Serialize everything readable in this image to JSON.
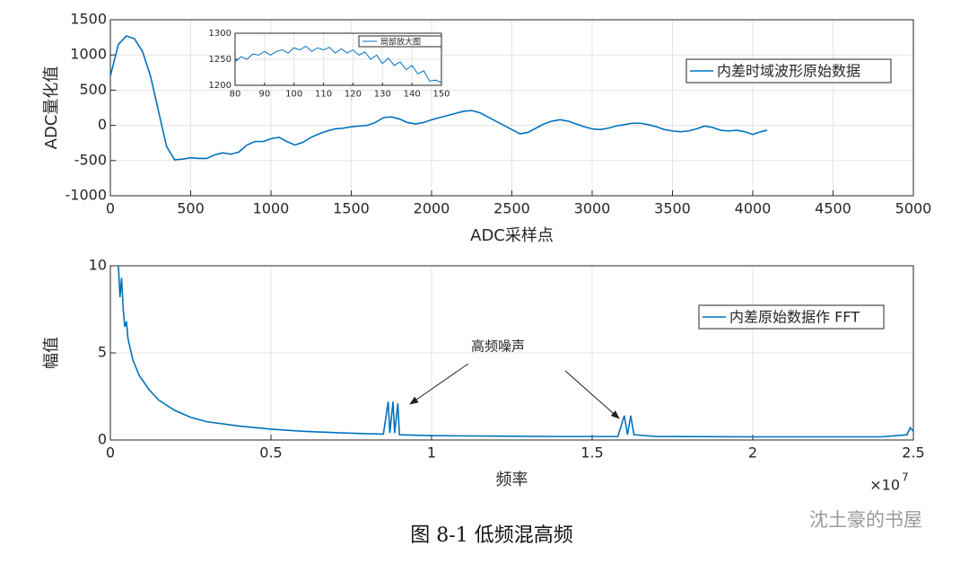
{
  "chart_data": [
    {
      "type": "line",
      "xlabel": "ADC采样点",
      "ylabel": "ADC量化值",
      "x": [
        0,
        50,
        100,
        150,
        200,
        250,
        300,
        350,
        400,
        450,
        500,
        550,
        600,
        650,
        700,
        750,
        800,
        850,
        900,
        950,
        1000,
        1050,
        1100,
        1150,
        1200,
        1250,
        1300,
        1350,
        1400,
        1450,
        1500,
        1550,
        1600,
        1650,
        1700,
        1750,
        1800,
        1850,
        1900,
        1950,
        2000,
        2050,
        2100,
        2150,
        2200,
        2250,
        2300,
        2350,
        2400,
        2450,
        2500,
        2550,
        2600,
        2650,
        2700,
        2750,
        2800,
        2850,
        2900,
        2950,
        3000,
        3050,
        3100,
        3150,
        3200,
        3250,
        3300,
        3350,
        3400,
        3450,
        3500,
        3550,
        3600,
        3650,
        3700,
        3750,
        3800,
        3850,
        3900,
        3950,
        4000,
        4050,
        4090
      ],
      "series": [
        {
          "name": "内差时域波形原始数据",
          "color": "#0072bd",
          "values": [
            700,
            1150,
            1270,
            1230,
            1050,
            700,
            200,
            -300,
            -490,
            -480,
            -460,
            -470,
            -470,
            -420,
            -390,
            -410,
            -380,
            -280,
            -230,
            -230,
            -190,
            -170,
            -230,
            -280,
            -240,
            -170,
            -120,
            -80,
            -50,
            -40,
            -20,
            -10,
            0,
            40,
            110,
            120,
            90,
            40,
            20,
            40,
            80,
            110,
            140,
            170,
            200,
            210,
            180,
            120,
            60,
            0,
            -60,
            -120,
            -100,
            -40,
            20,
            60,
            80,
            60,
            20,
            -20,
            -50,
            -60,
            -40,
            -10,
            10,
            30,
            30,
            10,
            -20,
            -60,
            -80,
            -90,
            -80,
            -50,
            -10,
            -30,
            -70,
            -80,
            -70,
            -90,
            -130,
            -90,
            -70
          ]
        }
      ],
      "xlim": [
        0,
        5000
      ],
      "xticks": [
        0,
        500,
        1000,
        1500,
        2000,
        2500,
        3000,
        3500,
        4000,
        4500,
        5000
      ],
      "ylim": [
        -1000,
        1500
      ],
      "yticks": [
        -1000,
        -500,
        0,
        500,
        1000,
        1500
      ],
      "grid": true,
      "legend": "upper right"
    },
    {
      "type": "line",
      "xlabel": "频率",
      "ylabel": "幅值",
      "x": [
        250000,
        300000,
        350000,
        400000,
        450000,
        500000,
        550000,
        700000,
        900000,
        1200000,
        1500000,
        2000000,
        2500000,
        3000000,
        4000000,
        5000000,
        6000000,
        7000000,
        8000000,
        8500000,
        8650000,
        8700000,
        8800000,
        8850000,
        8950000,
        9000000,
        10000000,
        12000000,
        14000000,
        15800000,
        16000000,
        16100000,
        16200000,
        16300000,
        17000000,
        20000000,
        24000000,
        24800000,
        24900000,
        25000000
      ],
      "series": [
        {
          "name": "内差原始数据作 FFT",
          "color": "#0072bd",
          "values": [
            10,
            8.2,
            9.3,
            7.5,
            6.5,
            6.8,
            5.8,
            4.6,
            3.7,
            2.9,
            2.3,
            1.7,
            1.3,
            1.05,
            0.8,
            0.62,
            0.5,
            0.42,
            0.36,
            0.34,
            2.2,
            0.4,
            2.2,
            0.4,
            2.1,
            0.3,
            0.25,
            0.22,
            0.2,
            0.2,
            1.4,
            0.3,
            1.4,
            0.3,
            0.2,
            0.18,
            0.18,
            0.3,
            0.7,
            0.5
          ]
        }
      ],
      "xlim": [
        0,
        25000000
      ],
      "xticks": [
        0,
        {
          "value": 5000000,
          "label": "0.5"
        },
        {
          "value": 10000000,
          "label": "1"
        },
        {
          "value": 15000000,
          "label": "1.5"
        },
        {
          "value": 20000000,
          "label": "2"
        },
        {
          "value": 25000000,
          "label": "2.5"
        }
      ],
      "ylim": [
        0,
        10
      ],
      "yticks": [
        0,
        5,
        10
      ],
      "grid": true,
      "legend": "upper right",
      "annotation": "高频噪声",
      "x_multiplier": {
        "base": "×10",
        "exponent": "7"
      }
    },
    {
      "type": "line",
      "x": [
        80,
        82,
        84,
        86,
        88,
        90,
        92,
        94,
        96,
        98,
        100,
        102,
        104,
        106,
        108,
        110,
        112,
        114,
        116,
        118,
        120,
        122,
        124,
        126,
        128,
        130,
        132,
        134,
        136,
        138,
        140,
        142,
        144,
        146,
        148,
        150
      ],
      "series": [
        {
          "name": "局部放大图",
          "color": "#0072bd",
          "values": [
            1245,
            1255,
            1250,
            1260,
            1258,
            1265,
            1258,
            1265,
            1268,
            1262,
            1272,
            1268,
            1275,
            1265,
            1272,
            1268,
            1273,
            1262,
            1270,
            1262,
            1268,
            1258,
            1264,
            1250,
            1258,
            1242,
            1252,
            1238,
            1245,
            1230,
            1238,
            1222,
            1228,
            1208,
            1210,
            1205
          ]
        }
      ],
      "xlim": [
        80,
        150
      ],
      "xticks": [
        80,
        90,
        100,
        110,
        120,
        130,
        140,
        150
      ],
      "ylim": [
        1200,
        1300
      ],
      "yticks": [
        1200,
        1250,
        1300
      ],
      "grid": true,
      "legend": "upper right"
    }
  ],
  "caption": "图 8-1  低频混高频",
  "watermark": "沈土豪的书屋"
}
